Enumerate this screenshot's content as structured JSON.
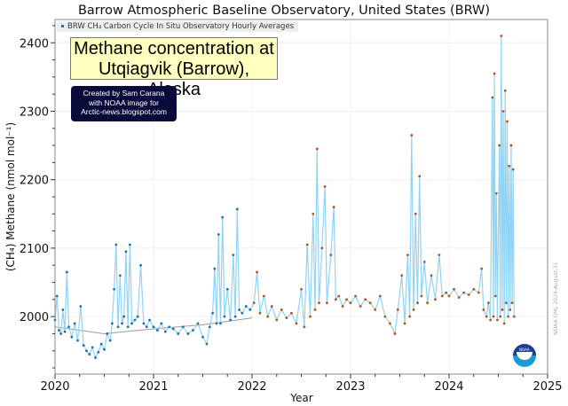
{
  "chart_data": {
    "type": "scatter",
    "title": "Barrow Atmospheric Baseline Observatory, United States (BRW)",
    "xlabel": "Year",
    "ylabel": "(CH₄) Methane (nmol mol⁻¹)",
    "xlim": [
      2020,
      2025
    ],
    "ylim": [
      1916,
      2434
    ],
    "xticks": [
      "2020",
      "2021",
      "2022",
      "2023",
      "2024",
      "2025"
    ],
    "xtick_values": [
      2020,
      2021,
      2022,
      2023,
      2024,
      2025
    ],
    "yticks": [
      "2000",
      "2100",
      "2200",
      "2300",
      "2400"
    ],
    "ytick_values": [
      2000,
      2100,
      2200,
      2300,
      2400
    ],
    "grid": true,
    "legend": {
      "position": "top-left",
      "label": "BRW CH₄ Carbon Cycle In Situ Observatory Hourly Averages"
    },
    "colors": {
      "final": "#1f6fb0",
      "preliminary": "#b5541a",
      "line": "#8fd3f5",
      "trend": "#999999"
    },
    "preliminary_from": 2022.0,
    "series": [
      {
        "name": "BRW CH4 hourly averages",
        "points": [
          [
            2020.0,
            1995
          ],
          [
            2020.02,
            2030
          ],
          [
            2020.04,
            1980
          ],
          [
            2020.06,
            1975
          ],
          [
            2020.08,
            2010
          ],
          [
            2020.1,
            1978
          ],
          [
            2020.12,
            2065
          ],
          [
            2020.14,
            1985
          ],
          [
            2020.17,
            1970
          ],
          [
            2020.2,
            1990
          ],
          [
            2020.23,
            1965
          ],
          [
            2020.26,
            2015
          ],
          [
            2020.29,
            1958
          ],
          [
            2020.32,
            1950
          ],
          [
            2020.35,
            1945
          ],
          [
            2020.38,
            1955
          ],
          [
            2020.41,
            1940
          ],
          [
            2020.44,
            1948
          ],
          [
            2020.47,
            1960
          ],
          [
            2020.5,
            1952
          ],
          [
            2020.53,
            1975
          ],
          [
            2020.56,
            1965
          ],
          [
            2020.58,
            1990
          ],
          [
            2020.6,
            2040
          ],
          [
            2020.62,
            2105
          ],
          [
            2020.64,
            1985
          ],
          [
            2020.66,
            2060
          ],
          [
            2020.68,
            1990
          ],
          [
            2020.7,
            2000
          ],
          [
            2020.72,
            2095
          ],
          [
            2020.74,
            1985
          ],
          [
            2020.76,
            2105
          ],
          [
            2020.78,
            1990
          ],
          [
            2020.81,
            1995
          ],
          [
            2020.84,
            2000
          ],
          [
            2020.87,
            2075
          ],
          [
            2020.9,
            1990
          ],
          [
            2020.93,
            1985
          ],
          [
            2020.96,
            1995
          ],
          [
            2021.0,
            1985
          ],
          [
            2021.04,
            1980
          ],
          [
            2021.08,
            1990
          ],
          [
            2021.12,
            1978
          ],
          [
            2021.16,
            1985
          ],
          [
            2021.2,
            1982
          ],
          [
            2021.25,
            1975
          ],
          [
            2021.3,
            1985
          ],
          [
            2021.35,
            1975
          ],
          [
            2021.4,
            1980
          ],
          [
            2021.45,
            1990
          ],
          [
            2021.5,
            1970
          ],
          [
            2021.54,
            1960
          ],
          [
            2021.57,
            1985
          ],
          [
            2021.6,
            2005
          ],
          [
            2021.62,
            2070
          ],
          [
            2021.64,
            1990
          ],
          [
            2021.66,
            2120
          ],
          [
            2021.68,
            1990
          ],
          [
            2021.7,
            2145
          ],
          [
            2021.72,
            2000
          ],
          [
            2021.75,
            2040
          ],
          [
            2021.78,
            1995
          ],
          [
            2021.81,
            2090
          ],
          [
            2021.83,
            2000
          ],
          [
            2021.85,
            2157
          ],
          [
            2021.87,
            2010
          ],
          [
            2021.9,
            2005
          ],
          [
            2021.94,
            2015
          ],
          [
            2021.98,
            2010
          ],
          [
            2022.02,
            2020
          ],
          [
            2022.05,
            2065
          ],
          [
            2022.08,
            2005
          ],
          [
            2022.12,
            2030
          ],
          [
            2022.16,
            2000
          ],
          [
            2022.2,
            2015
          ],
          [
            2022.25,
            1995
          ],
          [
            2022.3,
            2010
          ],
          [
            2022.35,
            1998
          ],
          [
            2022.4,
            2005
          ],
          [
            2022.45,
            1990
          ],
          [
            2022.5,
            2040
          ],
          [
            2022.53,
            1985
          ],
          [
            2022.56,
            2105
          ],
          [
            2022.59,
            2000
          ],
          [
            2022.62,
            2150
          ],
          [
            2022.64,
            2010
          ],
          [
            2022.66,
            2245
          ],
          [
            2022.68,
            2020
          ],
          [
            2022.71,
            2100
          ],
          [
            2022.74,
            2190
          ],
          [
            2022.76,
            2020
          ],
          [
            2022.8,
            2090
          ],
          [
            2022.83,
            2160
          ],
          [
            2022.85,
            2025
          ],
          [
            2022.88,
            2030
          ],
          [
            2022.92,
            2015
          ],
          [
            2022.96,
            2025
          ],
          [
            2023.0,
            2020
          ],
          [
            2023.05,
            2030
          ],
          [
            2023.1,
            2015
          ],
          [
            2023.15,
            2025
          ],
          [
            2023.2,
            2020
          ],
          [
            2023.25,
            2010
          ],
          [
            2023.3,
            2030
          ],
          [
            2023.35,
            2000
          ],
          [
            2023.4,
            1990
          ],
          [
            2023.45,
            1975
          ],
          [
            2023.48,
            2010
          ],
          [
            2023.52,
            2060
          ],
          [
            2023.55,
            1990
          ],
          [
            2023.58,
            2090
          ],
          [
            2023.6,
            2000
          ],
          [
            2023.62,
            2265
          ],
          [
            2023.64,
            2010
          ],
          [
            2023.66,
            2150
          ],
          [
            2023.68,
            2020
          ],
          [
            2023.7,
            2205
          ],
          [
            2023.72,
            2030
          ],
          [
            2023.75,
            2080
          ],
          [
            2023.78,
            2020
          ],
          [
            2023.82,
            2060
          ],
          [
            2023.86,
            2025
          ],
          [
            2023.9,
            2090
          ],
          [
            2023.93,
            2030
          ],
          [
            2023.97,
            2035
          ],
          [
            2024.0,
            2030
          ],
          [
            2024.05,
            2040
          ],
          [
            2024.1,
            2028
          ],
          [
            2024.15,
            2035
          ],
          [
            2024.2,
            2032
          ],
          [
            2024.25,
            2040
          ],
          [
            2024.3,
            2035
          ],
          [
            2024.33,
            2070
          ],
          [
            2024.35,
            2010
          ],
          [
            2024.38,
            2000
          ],
          [
            2024.4,
            2020
          ],
          [
            2024.42,
            1995
          ],
          [
            2024.44,
            2320
          ],
          [
            2024.45,
            2000
          ],
          [
            2024.46,
            2355
          ],
          [
            2024.47,
            2030
          ],
          [
            2024.48,
            2180
          ],
          [
            2024.49,
            1995
          ],
          [
            2024.51,
            2250
          ],
          [
            2024.52,
            2000
          ],
          [
            2024.53,
            2410
          ],
          [
            2024.54,
            2010
          ],
          [
            2024.55,
            2300
          ],
          [
            2024.56,
            1990
          ],
          [
            2024.57,
            2330
          ],
          [
            2024.58,
            2020
          ],
          [
            2024.59,
            2285
          ],
          [
            2024.6,
            2000
          ],
          [
            2024.61,
            2220
          ],
          [
            2024.62,
            2010
          ],
          [
            2024.63,
            2250
          ],
          [
            2024.64,
            2020
          ],
          [
            2024.65,
            2215
          ],
          [
            2024.66,
            2000
          ]
        ]
      }
    ],
    "trend": [
      [
        2020.0,
        1985
      ],
      [
        2020.5,
        1975
      ],
      [
        2021.0,
        1982
      ],
      [
        2021.5,
        1988
      ],
      [
        2022.0,
        1998
      ]
    ]
  },
  "watermark": "NOAA GML 2024-August-31",
  "annotations": {
    "headline_line1": "Methane concentration at",
    "headline_line2": "Utqiagvik (Barrow), Alaska",
    "credit_line1": "Created by Sam Carana",
    "credit_line2": "with NOAA image for",
    "credit_line3": "Arctic-news.blogspot.com"
  },
  "logo_text": "NOAA"
}
